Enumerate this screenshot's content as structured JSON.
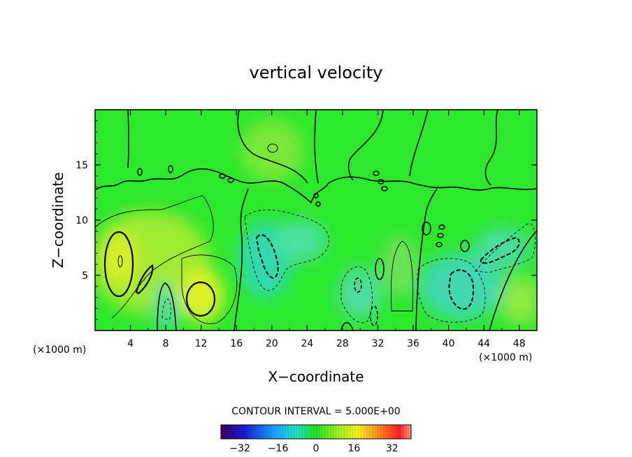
{
  "chart_data": {
    "type": "heatmap",
    "title": "vertical velocity",
    "xlabel": "X−coordinate",
    "ylabel": "Z−coordinate",
    "x_unit_left": "(×1000 m)",
    "x_unit_right": "(×1000 m)",
    "xlim": [
      0,
      50
    ],
    "ylim": [
      0,
      20
    ],
    "xticks": [
      4,
      8,
      12,
      16,
      20,
      24,
      28,
      32,
      36,
      40,
      44,
      48
    ],
    "yticks": [
      5,
      10,
      15
    ],
    "xtick_labels": [
      "4",
      "8",
      "12",
      "16",
      "20",
      "24",
      "28",
      "32",
      "36",
      "40",
      "44",
      "48"
    ],
    "ytick_labels": [
      "5",
      "10",
      "15"
    ],
    "contour_interval_label": "CONTOUR INTERVAL = 5.000E+00",
    "colorbar": {
      "min": -40,
      "max": 40,
      "tick_values": [
        -32,
        -16,
        0,
        16,
        32
      ],
      "tick_labels": [
        "−32",
        "−16",
        "0",
        "16",
        "32"
      ]
    },
    "features": [
      {
        "x": 3,
        "z": 6.8,
        "value": 12
      },
      {
        "x": 12,
        "z": 3,
        "value": 12
      },
      {
        "x": 20,
        "z": 6,
        "value": -12
      },
      {
        "x": 41,
        "z": 3.8,
        "value": -12
      },
      {
        "x": 20,
        "z": 16.3,
        "value": 4
      },
      {
        "x": 46,
        "z": 7.5,
        "value": -8
      }
    ]
  }
}
